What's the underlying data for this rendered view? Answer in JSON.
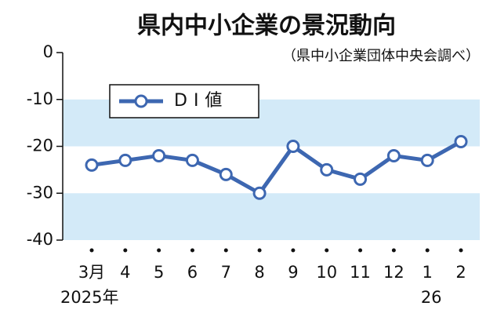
{
  "chart_data": {
    "type": "line",
    "title": "県内中小企業の景況動向",
    "subtitle": "（県中小企業団体中央会調べ）",
    "categories": [
      "3月",
      "4",
      "5",
      "6",
      "7",
      "8",
      "9",
      "10",
      "11",
      "12",
      "1",
      "2"
    ],
    "year_labels": [
      "2025年",
      null,
      null,
      null,
      null,
      null,
      null,
      null,
      null,
      null,
      "26",
      null
    ],
    "series": [
      {
        "name": "DI値",
        "color": "#3d67b1",
        "values": [
          -24,
          -23,
          -22,
          -23,
          -26,
          -30,
          -20,
          -25,
          -27,
          -22,
          -23,
          -19
        ]
      }
    ],
    "ylim": [
      -40,
      0
    ],
    "yticks": [
      0,
      -10,
      -20,
      -30,
      -40
    ],
    "bands": [
      {
        "from": -10,
        "to": -20
      },
      {
        "from": -30,
        "to": -40
      }
    ],
    "band_color": "#d3eaf8",
    "legend": "upper-left"
  }
}
